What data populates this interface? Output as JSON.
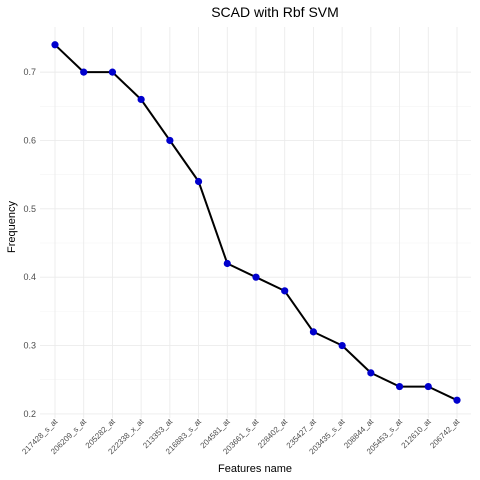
{
  "chart_data": {
    "type": "line",
    "title": "SCAD with Rbf SVM",
    "xlabel": "Features name",
    "ylabel": "Frequency",
    "categories": [
      "217428_s_at",
      "206209_s_at",
      "205282_at",
      "222338_x_at",
      "213353_at",
      "216883_s_at",
      "204581_at",
      "203661_s_at",
      "228402_at",
      "235427_at",
      "203435_s_at",
      "208844_at",
      "205453_s_at",
      "212610_at",
      "206742_at"
    ],
    "values": [
      0.74,
      0.7,
      0.7,
      0.66,
      0.6,
      0.54,
      0.42,
      0.4,
      0.38,
      0.32,
      0.3,
      0.26,
      0.24,
      0.24,
      0.22
    ],
    "yticks": [
      0.2,
      0.3,
      0.4,
      0.5,
      0.6,
      0.7
    ],
    "ylim": [
      0.194,
      0.766
    ],
    "grid": true,
    "line_color": "#000000",
    "point_color": "#0000cd"
  }
}
